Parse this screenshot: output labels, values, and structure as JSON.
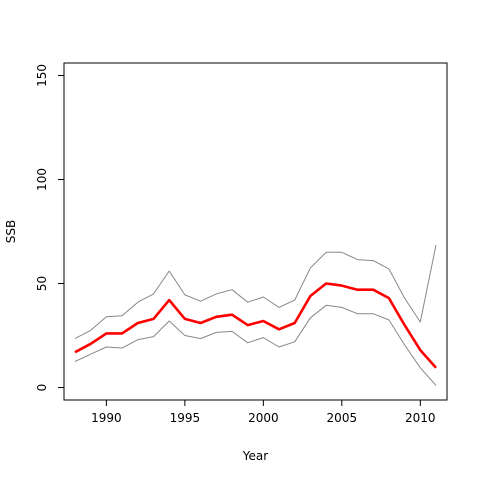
{
  "chart_data": {
    "type": "line",
    "title": "",
    "xlabel": "Year",
    "ylabel": "SSB",
    "xlim": [
      1987.3,
      2011.7
    ],
    "ylim": [
      -6,
      156
    ],
    "x_ticks": [
      "1990",
      "1995",
      "2000",
      "2005",
      "2010"
    ],
    "y_ticks": [
      "0",
      "50",
      "100",
      "150"
    ],
    "grid": false,
    "x": [
      1988,
      1989,
      1990,
      1991,
      1992,
      1993,
      1994,
      1995,
      1996,
      1997,
      1998,
      1999,
      2000,
      2001,
      2002,
      2003,
      2004,
      2005,
      2006,
      2007,
      2008,
      2009,
      2010,
      2011
    ],
    "series": [
      {
        "color": "#ff0000",
        "values": [
          17,
          21,
          26,
          26,
          31,
          33,
          42,
          33,
          31,
          34,
          35,
          30,
          32,
          28,
          31,
          44,
          50,
          49,
          47,
          47,
          43,
          30,
          18,
          9.5
        ]
      },
      {
        "color": "#888888",
        "values": [
          23.5,
          27.5,
          34,
          34.5,
          41,
          45,
          56,
          44.5,
          41.5,
          45,
          47,
          41,
          43.5,
          38.5,
          42,
          57.5,
          65,
          65,
          61.5,
          61,
          57,
          43,
          31.5,
          68.5
        ]
      },
      {
        "color": "#888888",
        "values": [
          12.5,
          16,
          19.5,
          19,
          23,
          24.5,
          32,
          25,
          23.5,
          26.5,
          27,
          21.5,
          24,
          19.5,
          22,
          33.5,
          39.5,
          38.5,
          35.5,
          35.5,
          32.5,
          20.5,
          9.5,
          1
        ]
      }
    ]
  }
}
